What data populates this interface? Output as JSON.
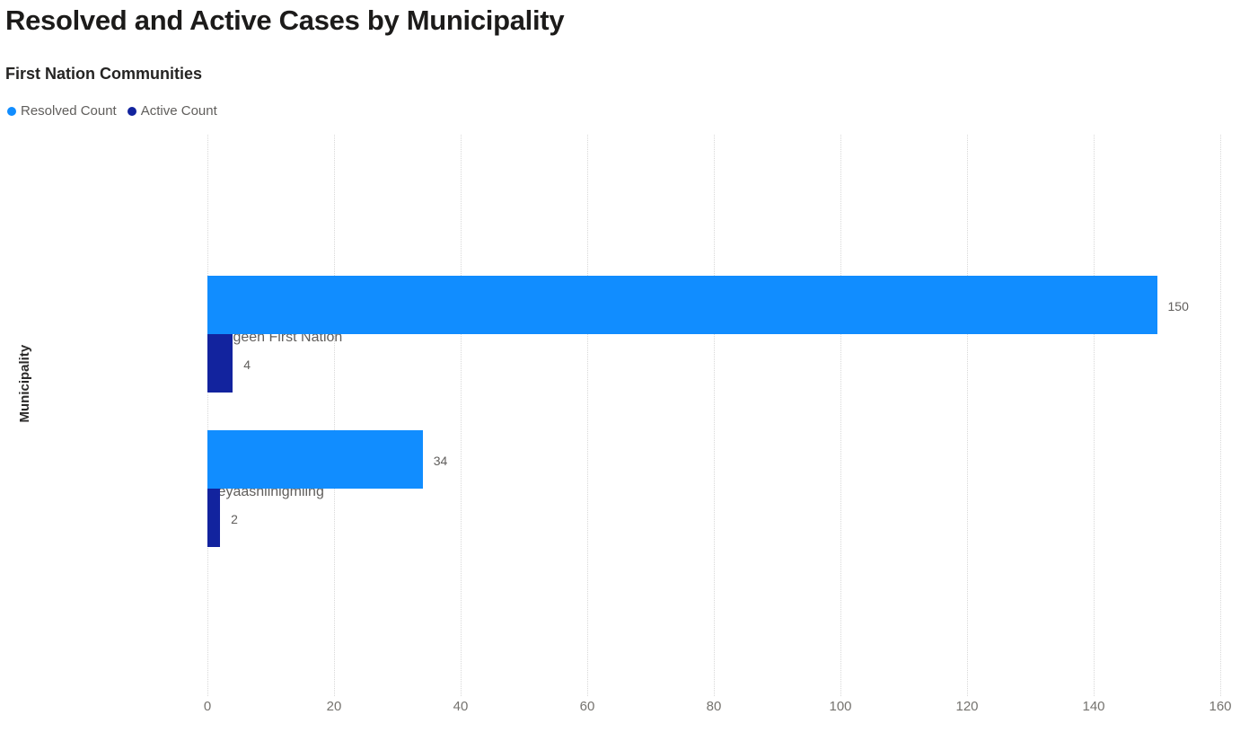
{
  "title": "Resolved and Active Cases by Municipality",
  "subtitle": "First Nation Communities",
  "legend": [
    {
      "label": "Resolved Count",
      "color": "#118DFF"
    },
    {
      "label": "Active Count",
      "color": "#12239E"
    }
  ],
  "axis": {
    "y_title": "Municipality"
  },
  "chart_data": {
    "type": "bar",
    "orientation": "horizontal",
    "title": "Resolved and Active Cases by Municipality",
    "subtitle": "First Nation Communities",
    "categories": [
      "Saugeen First Nation",
      "Neyaashiinigmiing"
    ],
    "series": [
      {
        "name": "Resolved Count",
        "color": "#118DFF",
        "values": [
          150,
          34
        ]
      },
      {
        "name": "Active Count",
        "color": "#12239E",
        "values": [
          4,
          2
        ]
      }
    ],
    "data_labels": [
      "150",
      "4",
      "34",
      "2"
    ],
    "xlabel": "",
    "ylabel": "Municipality",
    "xlim": [
      0,
      160
    ],
    "xticks": [
      0,
      20,
      40,
      60,
      80,
      100,
      120,
      140,
      160
    ],
    "grid": "vertical-dotted",
    "legend_position": "top-left"
  }
}
